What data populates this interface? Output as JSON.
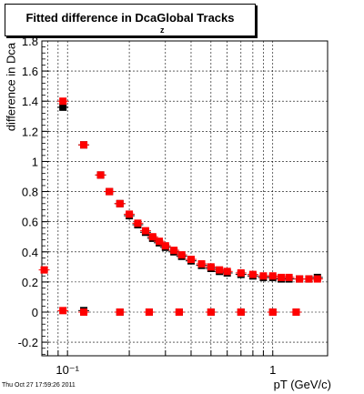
{
  "title": "Fitted difference in Dca",
  "title_subscript": "z",
  "title_suffix": "Global Tracks",
  "ylabel": "difference in Dca",
  "xlabel": "pT (GeV/c)",
  "footer": "Thu Oct 27 17:59:26 2011",
  "chart_data": {
    "type": "scatter",
    "xscale": "log",
    "xlim": [
      0.075,
      1.85
    ],
    "ylim": [
      -0.29,
      1.8
    ],
    "x_ticks": [
      {
        "value": 0.1,
        "label": "10⁻¹"
      },
      {
        "value": 1,
        "label": "1"
      }
    ],
    "y_ticks": [
      -0.2,
      0,
      0.2,
      0.4,
      0.6,
      0.8,
      1,
      1.2,
      1.4,
      1.6,
      1.8
    ],
    "grid": true,
    "series": [
      {
        "color": "#000000",
        "marker": "square",
        "points": [
          {
            "x": 0.095,
            "y": 1.36
          },
          {
            "x": 0.12,
            "y": 1.11
          },
          {
            "x": 0.145,
            "y": 0.91
          },
          {
            "x": 0.16,
            "y": 0.8
          },
          {
            "x": 0.18,
            "y": 0.72
          },
          {
            "x": 0.2,
            "y": 0.64
          },
          {
            "x": 0.22,
            "y": 0.58
          },
          {
            "x": 0.24,
            "y": 0.53
          },
          {
            "x": 0.26,
            "y": 0.49
          },
          {
            "x": 0.28,
            "y": 0.46
          },
          {
            "x": 0.3,
            "y": 0.43
          },
          {
            "x": 0.33,
            "y": 0.4
          },
          {
            "x": 0.36,
            "y": 0.37
          },
          {
            "x": 0.4,
            "y": 0.34
          },
          {
            "x": 0.45,
            "y": 0.31
          },
          {
            "x": 0.5,
            "y": 0.29
          },
          {
            "x": 0.55,
            "y": 0.27
          },
          {
            "x": 0.6,
            "y": 0.26
          },
          {
            "x": 0.7,
            "y": 0.25
          },
          {
            "x": 0.8,
            "y": 0.24
          },
          {
            "x": 0.9,
            "y": 0.23
          },
          {
            "x": 1.0,
            "y": 0.23
          },
          {
            "x": 1.1,
            "y": 0.22
          },
          {
            "x": 1.2,
            "y": 0.22
          },
          {
            "x": 1.35,
            "y": 0.22
          },
          {
            "x": 1.5,
            "y": 0.22
          },
          {
            "x": 1.65,
            "y": 0.23
          },
          {
            "x": 0.12,
            "y": 0.01
          },
          {
            "x": 0.18,
            "y": 0.0
          },
          {
            "x": 0.25,
            "y": 0.0
          },
          {
            "x": 0.35,
            "y": 0.0
          },
          {
            "x": 0.5,
            "y": 0.0
          },
          {
            "x": 0.7,
            "y": 0.0
          },
          {
            "x": 1.0,
            "y": 0.0
          },
          {
            "x": 1.3,
            "y": 0.0
          }
        ]
      },
      {
        "color": "#ff0000",
        "marker": "square",
        "points": [
          {
            "x": 0.095,
            "y": 1.4
          },
          {
            "x": 0.12,
            "y": 1.11
          },
          {
            "x": 0.145,
            "y": 0.91
          },
          {
            "x": 0.16,
            "y": 0.8
          },
          {
            "x": 0.18,
            "y": 0.72
          },
          {
            "x": 0.2,
            "y": 0.65
          },
          {
            "x": 0.22,
            "y": 0.59
          },
          {
            "x": 0.24,
            "y": 0.54
          },
          {
            "x": 0.26,
            "y": 0.5
          },
          {
            "x": 0.28,
            "y": 0.47
          },
          {
            "x": 0.3,
            "y": 0.44
          },
          {
            "x": 0.33,
            "y": 0.41
          },
          {
            "x": 0.36,
            "y": 0.38
          },
          {
            "x": 0.4,
            "y": 0.35
          },
          {
            "x": 0.45,
            "y": 0.32
          },
          {
            "x": 0.5,
            "y": 0.3
          },
          {
            "x": 0.55,
            "y": 0.28
          },
          {
            "x": 0.6,
            "y": 0.27
          },
          {
            "x": 0.7,
            "y": 0.26
          },
          {
            "x": 0.8,
            "y": 0.25
          },
          {
            "x": 0.9,
            "y": 0.24
          },
          {
            "x": 1.0,
            "y": 0.24
          },
          {
            "x": 1.1,
            "y": 0.23
          },
          {
            "x": 1.2,
            "y": 0.23
          },
          {
            "x": 1.35,
            "y": 0.22
          },
          {
            "x": 1.5,
            "y": 0.22
          },
          {
            "x": 1.65,
            "y": 0.22
          },
          {
            "x": 0.077,
            "y": 0.28
          },
          {
            "x": 0.095,
            "y": 0.01
          },
          {
            "x": 0.12,
            "y": 0.0
          },
          {
            "x": 0.18,
            "y": 0.0
          },
          {
            "x": 0.25,
            "y": 0.0
          },
          {
            "x": 0.35,
            "y": 0.0
          },
          {
            "x": 0.5,
            "y": 0.0
          },
          {
            "x": 0.7,
            "y": 0.0
          },
          {
            "x": 1.0,
            "y": 0.0
          },
          {
            "x": 1.3,
            "y": 0.0
          }
        ]
      }
    ]
  }
}
